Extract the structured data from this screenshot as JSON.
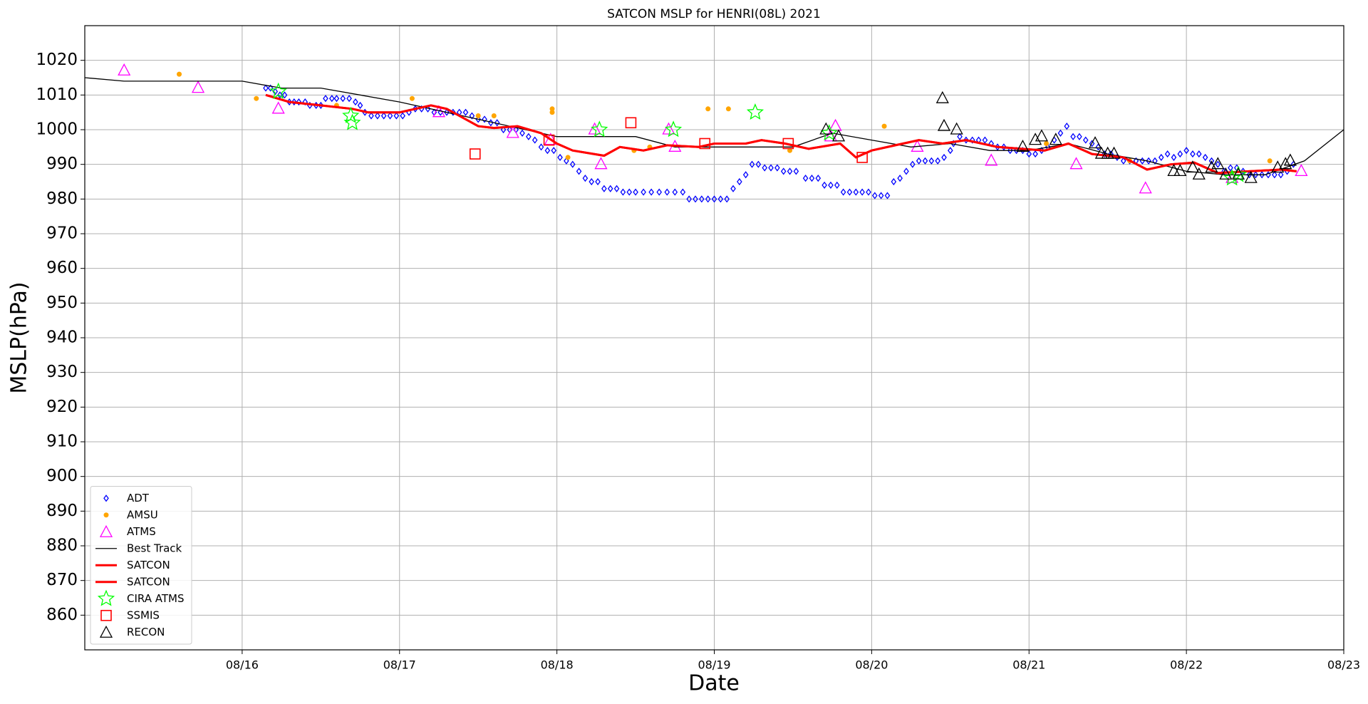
{
  "chart_data": {
    "type": "scatter",
    "title": "SATCON MSLP for HENRI(08L) 2021",
    "x_label": "Date",
    "y_label": "MSLP(hPa)",
    "xlim": [
      15,
      23
    ],
    "ylim": [
      850,
      1030
    ],
    "xticks": [
      {
        "value": 16,
        "label": "08/16"
      },
      {
        "value": 17,
        "label": "08/17"
      },
      {
        "value": 18,
        "label": "08/18"
      },
      {
        "value": 19,
        "label": "08/19"
      },
      {
        "value": 20,
        "label": "08/20"
      },
      {
        "value": 21,
        "label": "08/21"
      },
      {
        "value": 22,
        "label": "08/22"
      },
      {
        "value": 23,
        "label": "08/23"
      }
    ],
    "yticks": [
      860,
      870,
      880,
      890,
      900,
      910,
      920,
      930,
      940,
      950,
      960,
      970,
      980,
      990,
      1000,
      1010,
      1020
    ],
    "grid": true,
    "legend": "lower left",
    "series": [
      {
        "name": "ADT",
        "color": "#0000ff",
        "marker": "diamond",
        "x": [
          16.15,
          16.18,
          16.21,
          16.24,
          16.27,
          16.3,
          16.33,
          16.36,
          16.4,
          16.43,
          16.47,
          16.5,
          16.53,
          16.57,
          16.6,
          16.64,
          16.68,
          16.72,
          16.75,
          16.78,
          16.82,
          16.86,
          16.9,
          16.94,
          16.98,
          17.02,
          17.06,
          17.1,
          17.14,
          17.18,
          17.22,
          17.26,
          17.3,
          17.34,
          17.38,
          17.42,
          17.46,
          17.5,
          17.54,
          17.58,
          17.62,
          17.66,
          17.7,
          17.74,
          17.78,
          17.82,
          17.86,
          17.9,
          17.94,
          17.98,
          18.02,
          18.06,
          18.1,
          18.14,
          18.18,
          18.22,
          18.26,
          18.3,
          18.34,
          18.38,
          18.42,
          18.46,
          18.5,
          18.55,
          18.6,
          18.65,
          18.7,
          18.75,
          18.8,
          18.84,
          18.88,
          18.92,
          18.96,
          19.0,
          19.04,
          19.08,
          19.12,
          19.16,
          19.2,
          19.24,
          19.28,
          19.32,
          19.36,
          19.4,
          19.44,
          19.48,
          19.52,
          19.58,
          19.62,
          19.66,
          19.7,
          19.74,
          19.78,
          19.82,
          19.86,
          19.9,
          19.94,
          19.98,
          20.02,
          20.06,
          20.1,
          20.14,
          20.18,
          20.22,
          20.26,
          20.3,
          20.34,
          20.38,
          20.42,
          20.46,
          20.5,
          20.52,
          20.56,
          20.6,
          20.64,
          20.68,
          20.72,
          20.76,
          20.8,
          20.84,
          20.88,
          20.92,
          20.96,
          21.0,
          21.04,
          21.08,
          21.12,
          21.16,
          21.2,
          21.24,
          21.28,
          21.32,
          21.36,
          21.4,
          21.44,
          21.48,
          21.52,
          21.56,
          21.6,
          21.64,
          21.68,
          21.72,
          21.76,
          21.8,
          21.84,
          21.88,
          21.92,
          21.96,
          22.0,
          22.04,
          22.08,
          22.12,
          22.16,
          22.2,
          22.24,
          22.28,
          22.32,
          22.36,
          22.4,
          22.44,
          22.48,
          22.52,
          22.56,
          22.6,
          22.64,
          22.68
        ],
        "values": [
          1012,
          1012,
          1011,
          1010,
          1010,
          1008,
          1008,
          1008,
          1008,
          1007,
          1007,
          1007,
          1009,
          1009,
          1009,
          1009,
          1009,
          1008,
          1007,
          1005,
          1004,
          1004,
          1004,
          1004,
          1004,
          1004,
          1005,
          1006,
          1006,
          1006,
          1005,
          1005,
          1005,
          1005,
          1005,
          1005,
          1004,
          1003,
          1003,
          1002,
          1002,
          1000,
          1000,
          1000,
          999,
          998,
          997,
          995,
          994,
          994,
          992,
          991,
          990,
          988,
          986,
          985,
          985,
          983,
          983,
          983,
          982,
          982,
          982,
          982,
          982,
          982,
          982,
          982,
          982,
          980,
          980,
          980,
          980,
          980,
          980,
          980,
          983,
          985,
          987,
          990,
          990,
          989,
          989,
          989,
          988,
          988,
          988,
          986,
          986,
          986,
          984,
          984,
          984,
          982,
          982,
          982,
          982,
          982,
          981,
          981,
          981,
          985,
          986,
          988,
          990,
          991,
          991,
          991,
          991,
          992,
          994,
          996,
          998,
          997,
          997,
          997,
          997,
          996,
          995,
          995,
          994,
          994,
          994,
          993,
          993,
          994,
          995,
          997,
          999,
          1001,
          998,
          998,
          997,
          996,
          995,
          993,
          993,
          992,
          991,
          991,
          991,
          991,
          991,
          991,
          992,
          993,
          992,
          993,
          994,
          993,
          993,
          992,
          991,
          990,
          988,
          989,
          989,
          988,
          987,
          987,
          987,
          987,
          987,
          987,
          988,
          990
        ]
      },
      {
        "name": "AMSU",
        "color": "#ffa500",
        "marker": "circle",
        "x": [
          15.6,
          16.09,
          16.6,
          17.08,
          17.5,
          17.6,
          17.97,
          17.97,
          18.07,
          18.49,
          18.59,
          18.96,
          19.09,
          19.48,
          20.08,
          21.11,
          21.64,
          22.53
        ],
        "values": [
          1016,
          1009,
          1007,
          1009,
          1004,
          1004,
          1006,
          1005,
          992,
          994,
          995,
          1006,
          1006,
          994,
          1001,
          996,
          991,
          991
        ]
      },
      {
        "name": "ATMS",
        "color": "#ff00ff",
        "marker": "triangle",
        "x": [
          15.25,
          15.72,
          16.23,
          17.25,
          17.72,
          17.96,
          18.24,
          18.28,
          18.71,
          18.75,
          19.74,
          19.77,
          20.29,
          20.76,
          21.3,
          21.74,
          22.29,
          22.73
        ],
        "values": [
          1017,
          1012,
          1006,
          1005,
          999,
          997,
          1000,
          990,
          1000,
          995,
          998,
          1001,
          995,
          991,
          990,
          983,
          986,
          988
        ]
      },
      {
        "name": "Best Track",
        "color": "#000000",
        "marker": "line",
        "x": [
          15.0,
          15.25,
          16.0,
          16.25,
          16.5,
          17.0,
          17.5,
          18.0,
          18.5,
          18.75,
          19.0,
          19.5,
          19.75,
          20.0,
          20.25,
          20.5,
          20.75,
          21.0,
          21.25,
          21.5,
          21.75,
          22.0,
          22.25,
          22.5,
          22.75,
          23.0
        ],
        "values": [
          1015,
          1014,
          1014,
          1012,
          1012,
          1008,
          1003,
          998,
          998,
          995,
          995,
          995,
          999,
          997,
          995,
          996,
          994,
          994,
          996,
          993,
          991,
          988,
          987,
          987,
          991,
          1000
        ]
      },
      {
        "name": "SATCON",
        "color": "#ff0000",
        "marker": "line",
        "x": [
          16.15,
          16.3,
          16.5,
          16.7,
          16.8,
          17.0,
          17.1,
          17.2,
          17.3,
          17.5,
          17.6,
          17.75,
          17.9,
          18.0,
          18.1,
          18.3,
          18.4,
          18.55,
          18.7,
          18.9,
          19.0,
          19.2,
          19.3,
          19.45,
          19.6,
          19.8,
          19.9,
          20.0,
          20.15,
          20.3,
          20.45,
          20.6,
          20.8,
          20.95,
          21.1,
          21.25,
          21.4,
          21.6,
          21.75,
          21.9,
          22.05,
          22.2,
          22.4,
          22.6,
          22.7
        ],
        "values": [
          1010,
          1008,
          1007,
          1006,
          1005,
          1005,
          1006,
          1007,
          1006,
          1001,
          1000.5,
          1001,
          999,
          996,
          994,
          992.5,
          995,
          994,
          995.5,
          995,
          996,
          996,
          997,
          996,
          994.5,
          996,
          992,
          994,
          995.5,
          997,
          996,
          997,
          995,
          994.5,
          994,
          996,
          993,
          992,
          988.5,
          990,
          990.5,
          987.5,
          988,
          988.5,
          988
        ]
      },
      {
        "name": "SATCON",
        "color": "#ff0000",
        "marker": "line",
        "x": [
          16.15,
          16.3,
          16.5,
          16.7,
          16.8,
          17.0,
          17.1,
          17.2,
          17.3,
          17.5,
          17.6,
          17.75,
          17.9,
          18.0,
          18.1,
          18.3,
          18.4,
          18.55,
          18.7,
          18.9,
          19.0,
          19.2,
          19.3,
          19.45,
          19.6,
          19.8,
          19.9,
          20.0,
          20.15,
          20.3,
          20.45,
          20.6,
          20.8,
          20.95,
          21.1,
          21.25,
          21.4,
          21.6,
          21.75,
          21.9,
          22.05,
          22.2,
          22.4,
          22.6,
          22.7
        ],
        "values": [
          1010,
          1008,
          1007,
          1006,
          1005,
          1005,
          1006,
          1007,
          1006,
          1001,
          1000.5,
          1001,
          999,
          996,
          994,
          992.5,
          995,
          994,
          995.5,
          995,
          996,
          996,
          997,
          996,
          994.5,
          996,
          992,
          994,
          995.5,
          997,
          996,
          997,
          995,
          994.5,
          994,
          996,
          993,
          992,
          988.5,
          990,
          990.5,
          987.5,
          988,
          988.5,
          988
        ]
      },
      {
        "name": "CIRA ATMS",
        "color": "#00ff00",
        "marker": "star",
        "x": [
          16.23,
          16.69,
          16.7,
          18.27,
          18.74,
          19.26,
          19.73,
          22.29,
          22.33
        ],
        "values": [
          1011,
          1004,
          1002,
          1000,
          1000,
          1005,
          999,
          986,
          987
        ]
      },
      {
        "name": "SSMIS",
        "color": "#ff0000",
        "marker": "square",
        "x": [
          17.48,
          17.95,
          18.47,
          18.94,
          19.47,
          19.94
        ],
        "values": [
          993,
          997,
          1002,
          996,
          996,
          992
        ]
      },
      {
        "name": "RECON",
        "color": "#000000",
        "marker": "triangle",
        "x": [
          19.71,
          19.79,
          20.45,
          20.46,
          20.54,
          20.96,
          21.04,
          21.08,
          21.17,
          21.42,
          21.46,
          21.5,
          21.54,
          21.92,
          21.96,
          22.04,
          22.08,
          22.16,
          22.2,
          22.25,
          22.33,
          22.41,
          22.58,
          22.63,
          22.66
        ],
        "values": [
          1000,
          998,
          1009,
          1001,
          1000,
          995,
          997,
          998,
          997,
          996,
          993,
          993,
          993,
          988,
          988,
          989,
          987,
          989,
          990,
          987,
          987,
          986,
          989,
          990,
          991
        ]
      }
    ]
  }
}
